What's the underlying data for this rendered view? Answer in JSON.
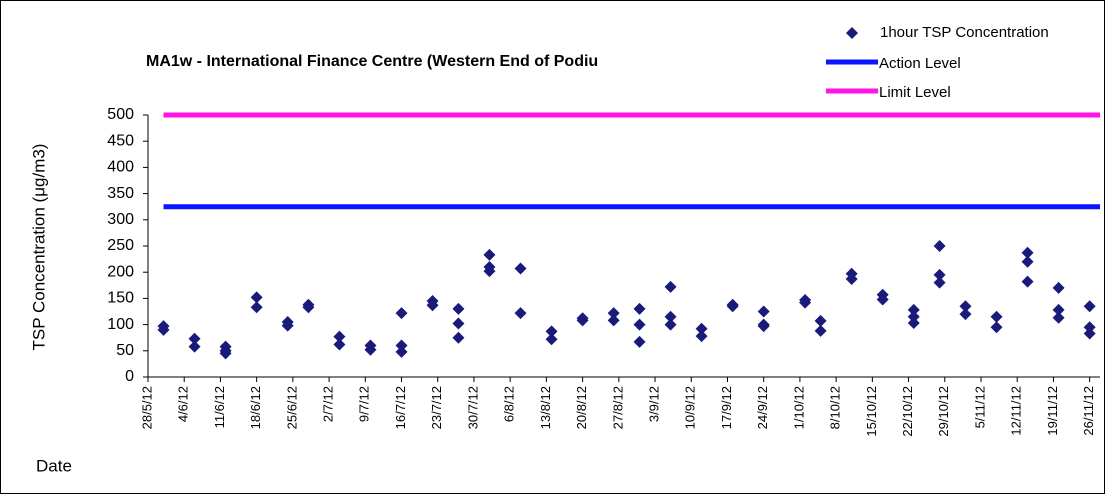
{
  "chart_data": {
    "type": "scatter",
    "title": "MA1w - International Finance Centre (Western End of Podiu",
    "y_label": "TSP Concentration (μg/m3)",
    "x_label": "Date",
    "xlim": [
      "2012-05-28",
      "2012-11-28"
    ],
    "xticks": [
      {
        "value": "2012-05-28",
        "label": "28/5/12"
      },
      {
        "value": "2012-06-04",
        "label": "4/6/12"
      },
      {
        "value": "2012-06-11",
        "label": "11/6/12"
      },
      {
        "value": "2012-06-18",
        "label": "18/6/12"
      },
      {
        "value": "2012-06-25",
        "label": "25/6/12"
      },
      {
        "value": "2012-07-02",
        "label": "2/7/12"
      },
      {
        "value": "2012-07-09",
        "label": "9/7/12"
      },
      {
        "value": "2012-07-16",
        "label": "16/7/12"
      },
      {
        "value": "2012-07-23",
        "label": "23/7/12"
      },
      {
        "value": "2012-07-30",
        "label": "30/7/12"
      },
      {
        "value": "2012-08-06",
        "label": "6/8/12"
      },
      {
        "value": "2012-08-13",
        "label": "13/8/12"
      },
      {
        "value": "2012-08-20",
        "label": "20/8/12"
      },
      {
        "value": "2012-08-27",
        "label": "27/8/12"
      },
      {
        "value": "2012-09-03",
        "label": "3/9/12"
      },
      {
        "value": "2012-09-10",
        "label": "10/9/12"
      },
      {
        "value": "2012-09-17",
        "label": "17/9/12"
      },
      {
        "value": "2012-09-24",
        "label": "24/9/12"
      },
      {
        "value": "2012-10-01",
        "label": "1/10/12"
      },
      {
        "value": "2012-10-08",
        "label": "8/10/12"
      },
      {
        "value": "2012-10-15",
        "label": "15/10/12"
      },
      {
        "value": "2012-10-22",
        "label": "22/10/12"
      },
      {
        "value": "2012-10-29",
        "label": "29/10/12"
      },
      {
        "value": "2012-11-05",
        "label": "5/11/12"
      },
      {
        "value": "2012-11-12",
        "label": "12/11/12"
      },
      {
        "value": "2012-11-19",
        "label": "19/11/12"
      },
      {
        "value": "2012-11-26",
        "label": "26/11/12"
      }
    ],
    "ylim": [
      0,
      500
    ],
    "yticks": [
      0,
      50,
      100,
      150,
      200,
      250,
      300,
      350,
      400,
      450,
      500
    ],
    "legend": "top-right",
    "series": [
      {
        "name": "1hour TSP Concentration",
        "color": "#1a1a7a",
        "kind": "scatter",
        "x": [
          "2012-05-31",
          "2012-05-31",
          "2012-06-06",
          "2012-06-06",
          "2012-06-12",
          "2012-06-12",
          "2012-06-12",
          "2012-06-18",
          "2012-06-18",
          "2012-06-24",
          "2012-06-24",
          "2012-06-28",
          "2012-06-28",
          "2012-07-04",
          "2012-07-04",
          "2012-07-10",
          "2012-07-10",
          "2012-07-16",
          "2012-07-16",
          "2012-07-16",
          "2012-07-22",
          "2012-07-22",
          "2012-07-27",
          "2012-07-27",
          "2012-07-27",
          "2012-08-02",
          "2012-08-02",
          "2012-08-02",
          "2012-08-08",
          "2012-08-08",
          "2012-08-14",
          "2012-08-14",
          "2012-08-20",
          "2012-08-20",
          "2012-08-26",
          "2012-08-26",
          "2012-08-31",
          "2012-08-31",
          "2012-08-31",
          "2012-09-06",
          "2012-09-06",
          "2012-09-06",
          "2012-09-12",
          "2012-09-12",
          "2012-09-18",
          "2012-09-18",
          "2012-09-24",
          "2012-09-24",
          "2012-09-24",
          "2012-10-02",
          "2012-10-02",
          "2012-10-05",
          "2012-10-05",
          "2012-10-11",
          "2012-10-11",
          "2012-10-17",
          "2012-10-17",
          "2012-10-23",
          "2012-10-23",
          "2012-10-23",
          "2012-10-28",
          "2012-10-28",
          "2012-10-28",
          "2012-11-02",
          "2012-11-02",
          "2012-11-08",
          "2012-11-08",
          "2012-11-14",
          "2012-11-14",
          "2012-11-14",
          "2012-11-20",
          "2012-11-20",
          "2012-11-20",
          "2012-11-26",
          "2012-11-26",
          "2012-11-26"
        ],
        "values": [
          97,
          90,
          73,
          58,
          58,
          50,
          45,
          152,
          133,
          105,
          98,
          138,
          133,
          77,
          62,
          60,
          52,
          122,
          60,
          48,
          145,
          137,
          130,
          102,
          75,
          233,
          210,
          202,
          207,
          122,
          87,
          72,
          112,
          108,
          122,
          108,
          130,
          100,
          67,
          172,
          115,
          100,
          92,
          78,
          138,
          135,
          125,
          100,
          97,
          147,
          142,
          107,
          88,
          197,
          187,
          157,
          148,
          128,
          115,
          103,
          250,
          195,
          180,
          135,
          120,
          115,
          95,
          237,
          220,
          182,
          170,
          128,
          113,
          135,
          95,
          83
        ]
      },
      {
        "name": "Action Level",
        "color": "#0a14ff",
        "kind": "line",
        "x": [
          "2012-05-31",
          "2012-11-28"
        ],
        "values": [
          325,
          325
        ]
      },
      {
        "name": "Limit Level",
        "color": "#ff14e6",
        "kind": "line",
        "x": [
          "2012-05-31",
          "2012-11-28"
        ],
        "values": [
          500,
          500
        ]
      }
    ]
  }
}
